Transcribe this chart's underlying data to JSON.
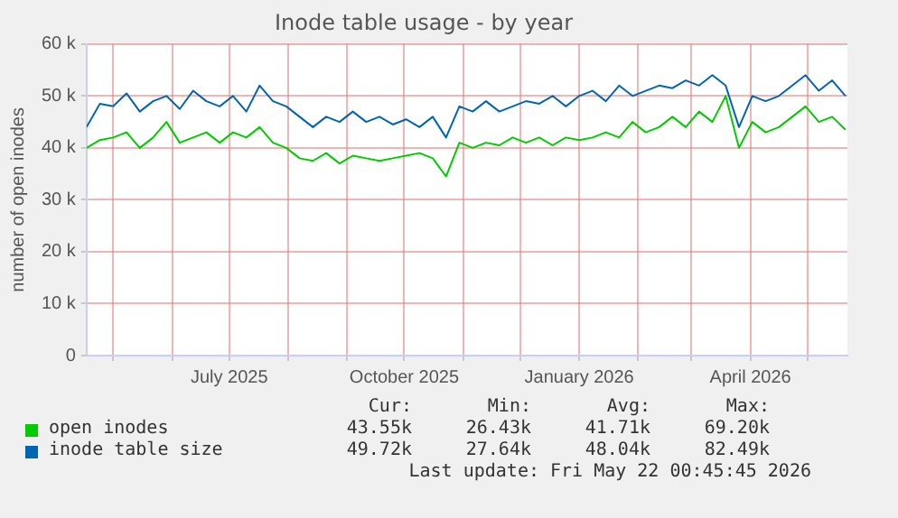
{
  "chart_data": {
    "type": "line",
    "title": "Inode table usage - by year",
    "ylabel": "number of open inodes",
    "x": [
      "2025-04-17",
      "2025-04-24",
      "2025-05-01",
      "2025-05-08",
      "2025-05-15",
      "2025-05-22",
      "2025-05-29",
      "2025-06-05",
      "2025-06-12",
      "2025-06-19",
      "2025-06-26",
      "2025-07-03",
      "2025-07-10",
      "2025-07-17",
      "2025-07-24",
      "2025-07-31",
      "2025-08-07",
      "2025-08-14",
      "2025-08-21",
      "2025-08-28",
      "2025-09-04",
      "2025-09-11",
      "2025-09-18",
      "2025-09-25",
      "2025-10-02",
      "2025-10-09",
      "2025-10-16",
      "2025-10-23",
      "2025-10-30",
      "2025-11-06",
      "2025-11-13",
      "2025-11-20",
      "2025-11-27",
      "2025-12-04",
      "2025-12-11",
      "2025-12-18",
      "2025-12-25",
      "2026-01-01",
      "2026-01-08",
      "2026-01-15",
      "2026-01-22",
      "2026-01-29",
      "2026-02-05",
      "2026-02-12",
      "2026-02-19",
      "2026-02-26",
      "2026-03-05",
      "2026-03-12",
      "2026-03-19",
      "2026-03-26",
      "2026-04-02",
      "2026-04-09",
      "2026-04-16",
      "2026-04-23",
      "2026-04-30",
      "2026-05-07",
      "2026-05-14",
      "2026-05-21"
    ],
    "series": [
      {
        "name": "open inodes",
        "color": "#00cc00",
        "values": [
          40000,
          41500,
          42000,
          43000,
          40000,
          42000,
          45000,
          41000,
          42000,
          43000,
          41000,
          43000,
          42000,
          44000,
          41000,
          40000,
          38000,
          37500,
          39000,
          37000,
          38500,
          38000,
          37500,
          38000,
          38500,
          39000,
          38000,
          34500,
          41000,
          40000,
          41000,
          40500,
          42000,
          41000,
          42000,
          40500,
          42000,
          41500,
          42000,
          43000,
          42000,
          45000,
          43000,
          44000,
          46000,
          44000,
          47000,
          45000,
          50000,
          40000,
          45000,
          43000,
          44000,
          46000,
          48000,
          45000,
          46000,
          43500
        ]
      },
      {
        "name": "inode table size",
        "color": "#0066b3",
        "values": [
          44000,
          48500,
          48000,
          50500,
          47000,
          49000,
          50000,
          47500,
          51000,
          49000,
          48000,
          50000,
          47000,
          52000,
          49000,
          48000,
          46000,
          44000,
          46000,
          45000,
          47000,
          45000,
          46000,
          44500,
          45500,
          44000,
          46000,
          42000,
          48000,
          47000,
          49000,
          47000,
          48000,
          49000,
          48500,
          50000,
          48000,
          50000,
          51000,
          49000,
          52000,
          50000,
          51000,
          52000,
          51500,
          53000,
          52000,
          54000,
          52000,
          44000,
          50000,
          49000,
          50000,
          52000,
          54000,
          51000,
          53000,
          50000
        ]
      }
    ],
    "xlim": [
      "2025-04-17",
      "2026-05-22"
    ],
    "xticks": [
      {
        "value": "2025-05-01",
        "label": null
      },
      {
        "value": "2025-06-01",
        "label": null
      },
      {
        "value": "2025-07-01",
        "label": "July 2025"
      },
      {
        "value": "2025-08-01",
        "label": null
      },
      {
        "value": "2025-09-01",
        "label": null
      },
      {
        "value": "2025-10-01",
        "label": "October 2025"
      },
      {
        "value": "2025-11-01",
        "label": null
      },
      {
        "value": "2025-12-01",
        "label": null
      },
      {
        "value": "2026-01-01",
        "label": "January 2026"
      },
      {
        "value": "2026-02-01",
        "label": null
      },
      {
        "value": "2026-03-01",
        "label": null
      },
      {
        "value": "2026-04-01",
        "label": "April 2026"
      },
      {
        "value": "2026-05-01",
        "label": null
      }
    ],
    "ylim": [
      0,
      60000
    ],
    "yticks": [
      0,
      {
        "value": 10000,
        "label": "10 k"
      },
      {
        "value": 20000,
        "label": "20 k"
      },
      {
        "value": 30000,
        "label": "30 k"
      },
      {
        "value": 40000,
        "label": "40 k"
      },
      {
        "value": 50000,
        "label": "50 k"
      },
      {
        "value": 60000,
        "label": "60 k"
      }
    ],
    "grid": true,
    "legend": "bottom",
    "marker": "none",
    "line_style": "solid",
    "annotations": [
      "Cur:",
      "Min:",
      "Avg:",
      "Max:",
      "43.55k",
      "26.43k",
      "41.71k",
      "69.20k",
      "49.72k",
      "27.64k",
      "48.04k",
      "82.49k",
      "Last update: Fri May 22 00:45:45 2026"
    ]
  }
}
